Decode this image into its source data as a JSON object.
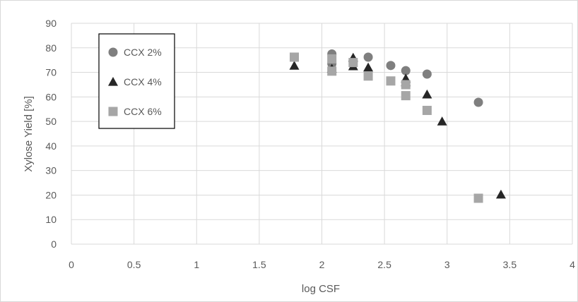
{
  "chart_data": {
    "type": "scatter",
    "title": "",
    "xlabel": "log CSF",
    "ylabel": "Xylose Yield [%]",
    "xlim": [
      0,
      4
    ],
    "ylim": [
      0,
      90
    ],
    "xticks": [
      "0",
      "0.5",
      "1",
      "1.5",
      "2",
      "2.5",
      "3",
      "3.5",
      "4"
    ],
    "yticks": [
      "0",
      "10",
      "20",
      "30",
      "40",
      "50",
      "60",
      "70",
      "80",
      "90"
    ],
    "grid": true,
    "legend_position": "top-left",
    "series": [
      {
        "name": "CCX 2%",
        "marker": "circle",
        "color": "#7f7f7f",
        "points": [
          {
            "x": 2.08,
            "y": 77.5
          },
          {
            "x": 2.08,
            "y": 73.5
          },
          {
            "x": 2.25,
            "y": 74.5
          },
          {
            "x": 2.37,
            "y": 76.2
          },
          {
            "x": 2.55,
            "y": 72.8
          },
          {
            "x": 2.67,
            "y": 70.7
          },
          {
            "x": 2.84,
            "y": 69.3
          },
          {
            "x": 3.25,
            "y": 57.8
          }
        ]
      },
      {
        "name": "CCX 4%",
        "marker": "triangle",
        "color": "#262626",
        "points": [
          {
            "x": 1.78,
            "y": 72.7
          },
          {
            "x": 2.08,
            "y": 71.5
          },
          {
            "x": 2.25,
            "y": 76.0
          },
          {
            "x": 2.25,
            "y": 72.5
          },
          {
            "x": 2.37,
            "y": 72.0
          },
          {
            "x": 2.67,
            "y": 67.5
          },
          {
            "x": 2.67,
            "y": 66.0
          },
          {
            "x": 2.84,
            "y": 61.0
          },
          {
            "x": 2.96,
            "y": 50.0
          },
          {
            "x": 3.43,
            "y": 20.2
          }
        ]
      },
      {
        "name": "CCX 6%",
        "marker": "square",
        "color": "#a6a6a6",
        "points": [
          {
            "x": 1.78,
            "y": 76.2
          },
          {
            "x": 2.08,
            "y": 75.5
          },
          {
            "x": 2.08,
            "y": 70.5
          },
          {
            "x": 2.25,
            "y": 74.0
          },
          {
            "x": 2.37,
            "y": 68.5
          },
          {
            "x": 2.55,
            "y": 66.5
          },
          {
            "x": 2.67,
            "y": 65.0
          },
          {
            "x": 2.67,
            "y": 60.5
          },
          {
            "x": 2.84,
            "y": 54.5
          },
          {
            "x": 3.25,
            "y": 18.7
          }
        ]
      }
    ]
  }
}
